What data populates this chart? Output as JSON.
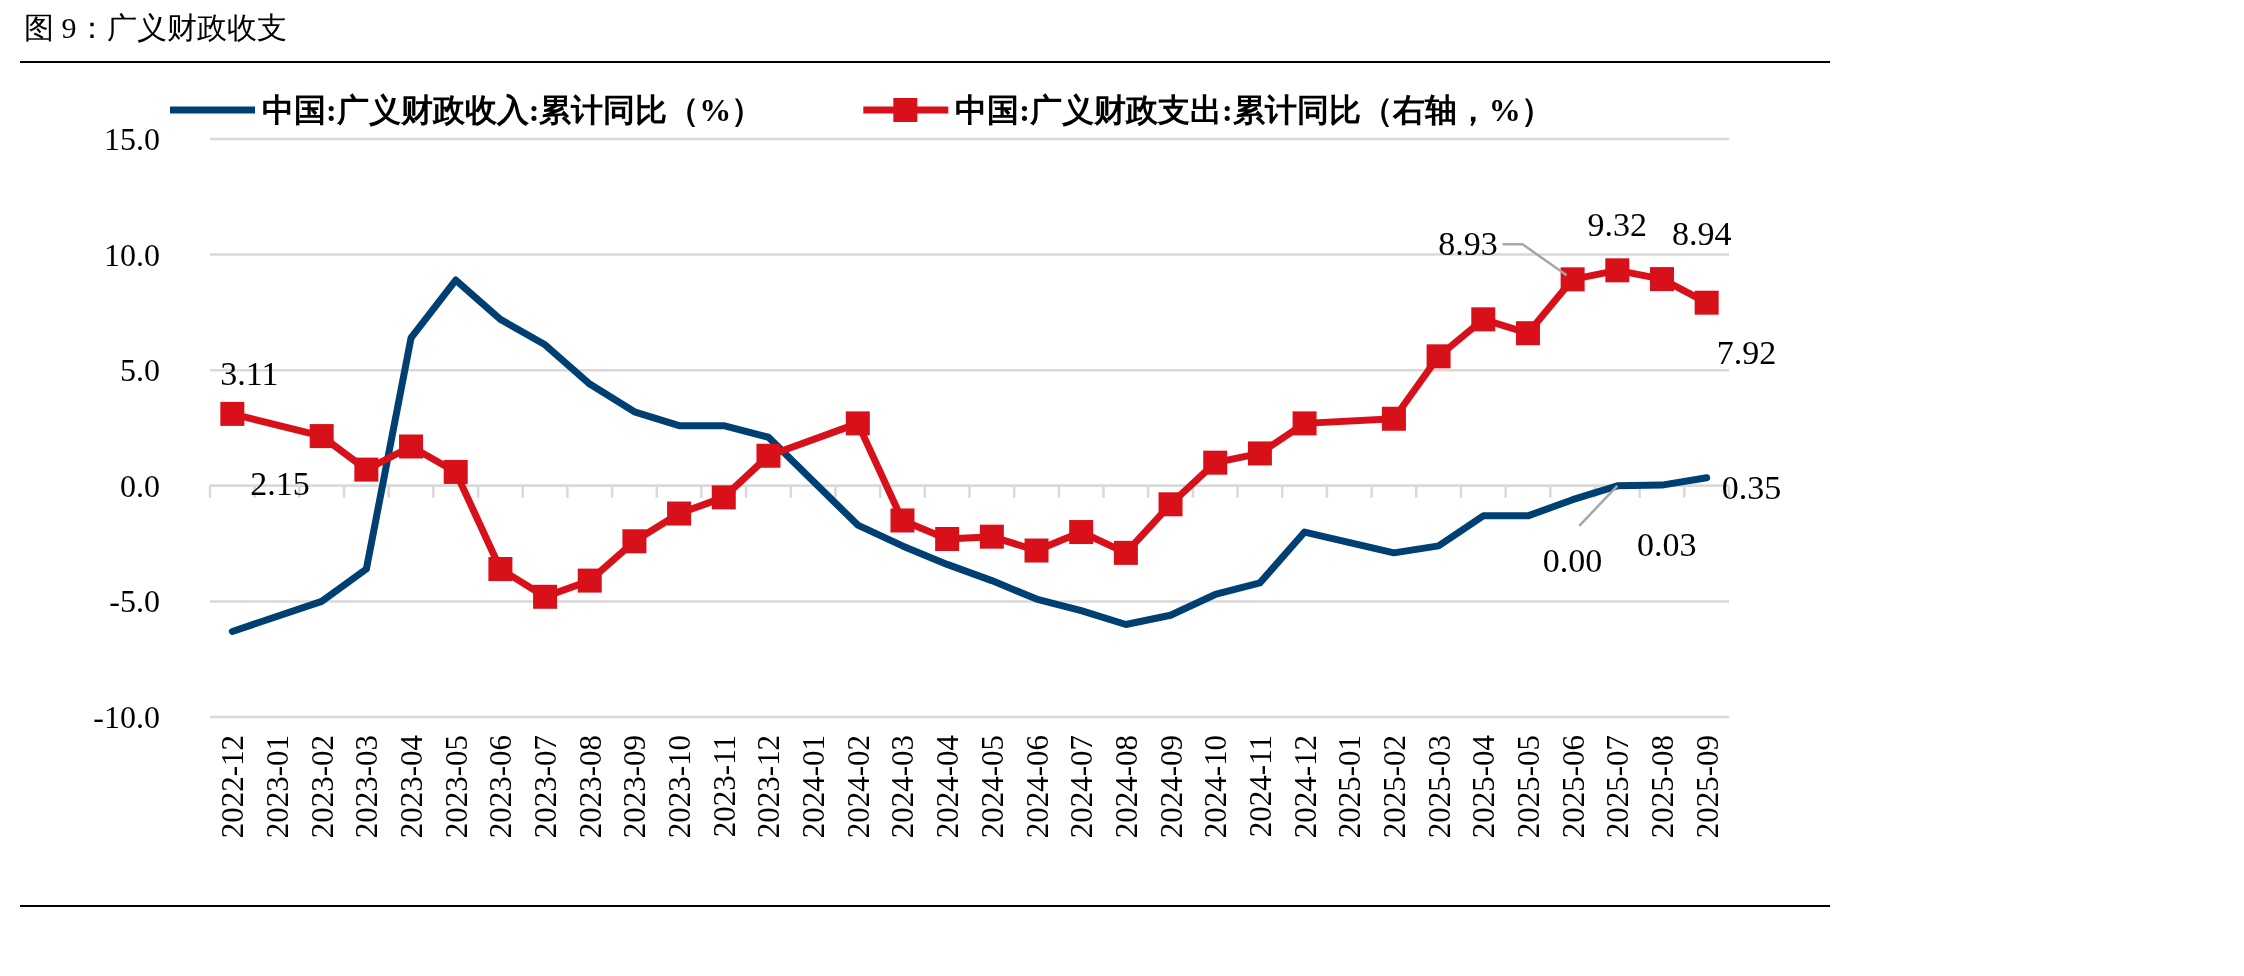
{
  "chart_data": {
    "type": "line",
    "title": "图 9：广义财政收支",
    "categories": [
      "2022-12",
      "2023-01",
      "2023-02",
      "2023-03",
      "2023-04",
      "2023-05",
      "2023-06",
      "2023-07",
      "2023-08",
      "2023-09",
      "2023-10",
      "2023-11",
      "2023-12",
      "2024-01",
      "2024-02",
      "2024-03",
      "2024-04",
      "2024-05",
      "2024-06",
      "2024-07",
      "2024-08",
      "2024-09",
      "2024-10",
      "2024-11",
      "2024-12",
      "2025-01",
      "2025-02",
      "2025-03",
      "2025-04",
      "2025-05",
      "2025-06",
      "2025-07",
      "2025-08",
      "2025-09"
    ],
    "series": [
      {
        "name": "中国:广义财政收入:累计同比（%）",
        "color": "#003f72",
        "marker": "none",
        "values": [
          -6.3,
          null,
          -5.0,
          -3.6,
          6.4,
          8.9,
          7.2,
          6.1,
          4.4,
          3.2,
          2.6,
          2.6,
          2.1,
          null,
          -1.7,
          -2.6,
          -3.4,
          -4.1,
          -4.9,
          -5.4,
          -6.0,
          -5.6,
          -4.7,
          -4.2,
          -2.0,
          null,
          -2.9,
          -2.6,
          -1.3,
          -1.3,
          -0.6,
          0.0,
          0.03,
          0.35
        ],
        "value_labels": [
          null,
          null,
          null,
          null,
          null,
          null,
          null,
          null,
          null,
          null,
          null,
          null,
          null,
          null,
          null,
          null,
          null,
          null,
          null,
          null,
          null,
          null,
          null,
          null,
          null,
          null,
          null,
          null,
          null,
          null,
          null,
          "0.00",
          "0.03",
          "0.35"
        ]
      },
      {
        "name": "中国:广义财政支出:累计同比（右轴，%）",
        "color": "#d7101a",
        "marker": "square",
        "values": [
          3.11,
          null,
          2.15,
          0.7,
          1.7,
          0.6,
          -3.6,
          -4.8,
          -4.1,
          -2.4,
          -1.2,
          -0.5,
          1.3,
          null,
          2.7,
          -1.5,
          -2.3,
          -2.2,
          -2.8,
          -2.0,
          -2.9,
          -0.8,
          1.0,
          1.4,
          2.7,
          null,
          2.9,
          5.6,
          7.2,
          6.6,
          8.93,
          9.32,
          8.94,
          7.92
        ],
        "value_labels": [
          "3.11",
          null,
          "2.15",
          null,
          null,
          null,
          null,
          null,
          null,
          null,
          null,
          null,
          null,
          null,
          null,
          null,
          null,
          null,
          null,
          null,
          null,
          null,
          null,
          null,
          null,
          null,
          null,
          null,
          null,
          null,
          "8.93",
          "9.32",
          "8.94",
          "7.92"
        ]
      }
    ],
    "ylim": [
      -10,
      15
    ],
    "yticks": [
      {
        "value": -10,
        "label": "-10.0"
      },
      {
        "value": -5,
        "label": "-5.0"
      },
      {
        "value": 0,
        "label": "0.0"
      },
      {
        "value": 5,
        "label": "5.0"
      },
      {
        "value": 10,
        "label": "10.0"
      },
      {
        "value": 15,
        "label": "15.0"
      }
    ],
    "grid": "y",
    "legend": "top",
    "line_style": "solid"
  }
}
